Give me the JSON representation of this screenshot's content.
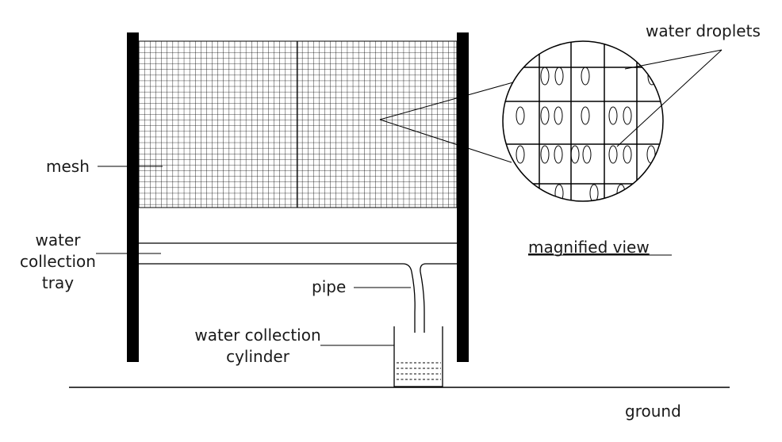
{
  "labels": {
    "mesh": "mesh",
    "tray_line1": "water",
    "tray_line2": "collection",
    "tray_line3": "tray",
    "pipe": "pipe",
    "cylinder_line1": "water collection",
    "cylinder_line2": "cylinder",
    "droplets": "water droplets",
    "magnified": "magnified view",
    "ground": "ground"
  }
}
